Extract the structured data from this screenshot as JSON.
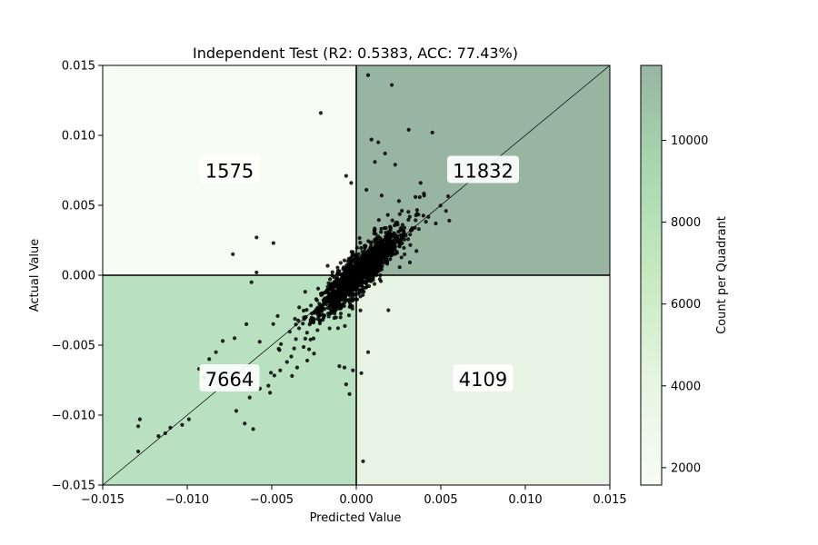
{
  "chart_data": {
    "type": "scatter",
    "title": "Independent Test (R2: 0.5383, ACC: 77.43%)",
    "xlabel": "Predicted Value",
    "ylabel": "Actual Value",
    "xlim": [
      -0.015,
      0.015
    ],
    "ylim": [
      -0.015,
      0.015
    ],
    "xticks": [
      -0.015,
      -0.01,
      -0.005,
      0.0,
      0.005,
      0.01,
      0.015
    ],
    "yticks": [
      -0.015,
      -0.01,
      -0.005,
      0.0,
      0.005,
      0.01,
      0.015
    ],
    "xtick_labels": [
      "−0.015",
      "−0.010",
      "−0.005",
      "0.000",
      "0.005",
      "0.010",
      "0.015"
    ],
    "ytick_labels": [
      "−0.015",
      "−0.010",
      "−0.005",
      "0.000",
      "0.005",
      "0.010",
      "0.015"
    ],
    "grid": false,
    "reference_line": "y = x",
    "quadrants": [
      {
        "name": "top-left",
        "count": 1575,
        "label": "1575",
        "color": "#f7fcf5"
      },
      {
        "name": "top-right",
        "count": 11832,
        "label": "11832",
        "color": "#98b5a1"
      },
      {
        "name": "bottom-left",
        "count": 7664,
        "label": "7664",
        "color": "#b9e0c0"
      },
      {
        "name": "bottom-right",
        "count": 4109,
        "label": "4109",
        "color": "#e8f4e3"
      }
    ],
    "colorbar": {
      "label": "Count per Quadrant",
      "range": [
        1575,
        11832
      ],
      "ticks": [
        2000,
        4000,
        6000,
        8000,
        10000
      ],
      "tick_labels": [
        "2000",
        "4000",
        "6000",
        "8000",
        "10000"
      ],
      "colors": [
        "#f7fcf5",
        "#e5f5e0",
        "#c7e9c0",
        "#a8d8b0",
        "#98b5a1"
      ]
    },
    "points": [
      [
        0.0007,
        0.0143
      ],
      [
        0.0021,
        0.0136
      ],
      [
        -0.0021,
        0.0116
      ],
      [
        0.0031,
        0.0104
      ],
      [
        0.0045,
        0.0102
      ],
      [
        0.0009,
        0.0097
      ],
      [
        0.0013,
        0.0095
      ],
      [
        0.0017,
        0.0087
      ],
      [
        0.0011,
        0.0081
      ],
      [
        0.0023,
        0.0079
      ],
      [
        0.0055,
        0.0039
      ],
      [
        0.0047,
        0.0037
      ],
      [
        0.0037,
        0.0033
      ],
      [
        -0.0073,
        0.0015
      ],
      [
        -0.0059,
        0.0027
      ],
      [
        -0.0049,
        0.0023
      ],
      [
        -0.0006,
        0.0071
      ],
      [
        -0.0003,
        0.0066
      ],
      [
        0.0006,
        0.0061
      ],
      [
        0.0015,
        0.0057
      ],
      [
        -0.0059,
        0.0002
      ],
      [
        -0.0062,
        -0.0005
      ],
      [
        -0.0065,
        -0.0035
      ],
      [
        -0.0072,
        -0.0045
      ],
      [
        -0.0079,
        -0.0047
      ],
      [
        -0.0083,
        -0.0055
      ],
      [
        -0.0087,
        -0.006
      ],
      [
        -0.0093,
        -0.0067
      ],
      [
        -0.009,
        -0.0073
      ],
      [
        -0.0085,
        -0.007
      ],
      [
        -0.0063,
        -0.0078
      ],
      [
        -0.0057,
        -0.0081
      ],
      [
        -0.0052,
        -0.0079
      ],
      [
        -0.0051,
        -0.0084
      ],
      [
        -0.0071,
        -0.0097
      ],
      [
        -0.0066,
        -0.0106
      ],
      [
        -0.0061,
        -0.011
      ],
      [
        -0.0099,
        -0.0103
      ],
      [
        -0.0103,
        -0.0107
      ],
      [
        -0.011,
        -0.0109
      ],
      [
        -0.0113,
        -0.0113
      ],
      [
        -0.0117,
        -0.0115
      ],
      [
        -0.0128,
        -0.0103
      ],
      [
        -0.0129,
        -0.0108
      ],
      [
        -0.0129,
        -0.0126
      ],
      [
        -0.0045,
        -0.0068
      ],
      [
        -0.0041,
        -0.0062
      ],
      [
        -0.0035,
        -0.0066
      ],
      [
        -0.0038,
        -0.0072
      ],
      [
        -0.0029,
        -0.0061
      ],
      [
        -0.0025,
        -0.0056
      ],
      [
        -0.0002,
        -0.0068
      ],
      [
        0.0003,
        -0.007
      ],
      [
        -0.0007,
        -0.0066
      ],
      [
        0.0004,
        -0.0133
      ],
      [
        -0.0006,
        -0.0078
      ],
      [
        -0.0004,
        -0.0085
      ],
      [
        -0.001,
        -0.0065
      ],
      [
        0.0007,
        -0.0055
      ],
      [
        0.0019,
        -0.0025
      ]
    ]
  }
}
